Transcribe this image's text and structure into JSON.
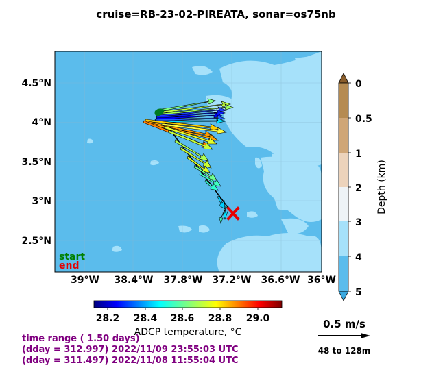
{
  "title": "cruise=RB-23-02-PIREATA,   sonar=os75nb",
  "map": {
    "lon_ticks": [
      "39°W",
      "38.4°W",
      "37.8°W",
      "37.2°W",
      "36.6°W",
      "36°W"
    ],
    "lat_ticks": [
      "4.5°N",
      "4°N",
      "3.5°N",
      "3°N",
      "2.5°N"
    ],
    "start_label": "start",
    "end_label": "end",
    "start_color": "#008000",
    "end_color": "#e60000",
    "end_marker": "red-x-icon",
    "ocean_color": "#5bbcec",
    "shallow_color": "#a6e1fa"
  },
  "depth_colorbar": {
    "label": "Depth (km)",
    "ticks": [
      "0",
      "0.5",
      "1",
      "2",
      "3",
      "4",
      "5"
    ],
    "colors": [
      "#b58b52",
      "#cfa677",
      "#ecd3bb",
      "#eef3f6",
      "#a6e1fa",
      "#5bbcec",
      "#3aa9e0"
    ]
  },
  "temp_colorbar": {
    "label": "ADCP temperature, °C",
    "ticks": [
      "28.2",
      "28.4",
      "28.6",
      "28.8",
      "29.0"
    ]
  },
  "time_info": {
    "range": "time range ( 1.50 days)",
    "line2": "(dday = 312.997) 2022/11/09 23:55:03 UTC",
    "line3": "(dday = 311.497) 2022/11/08 11:55:04 UTC"
  },
  "scale": {
    "speed": "0.5 m/s",
    "range": "48 to 128m"
  }
}
